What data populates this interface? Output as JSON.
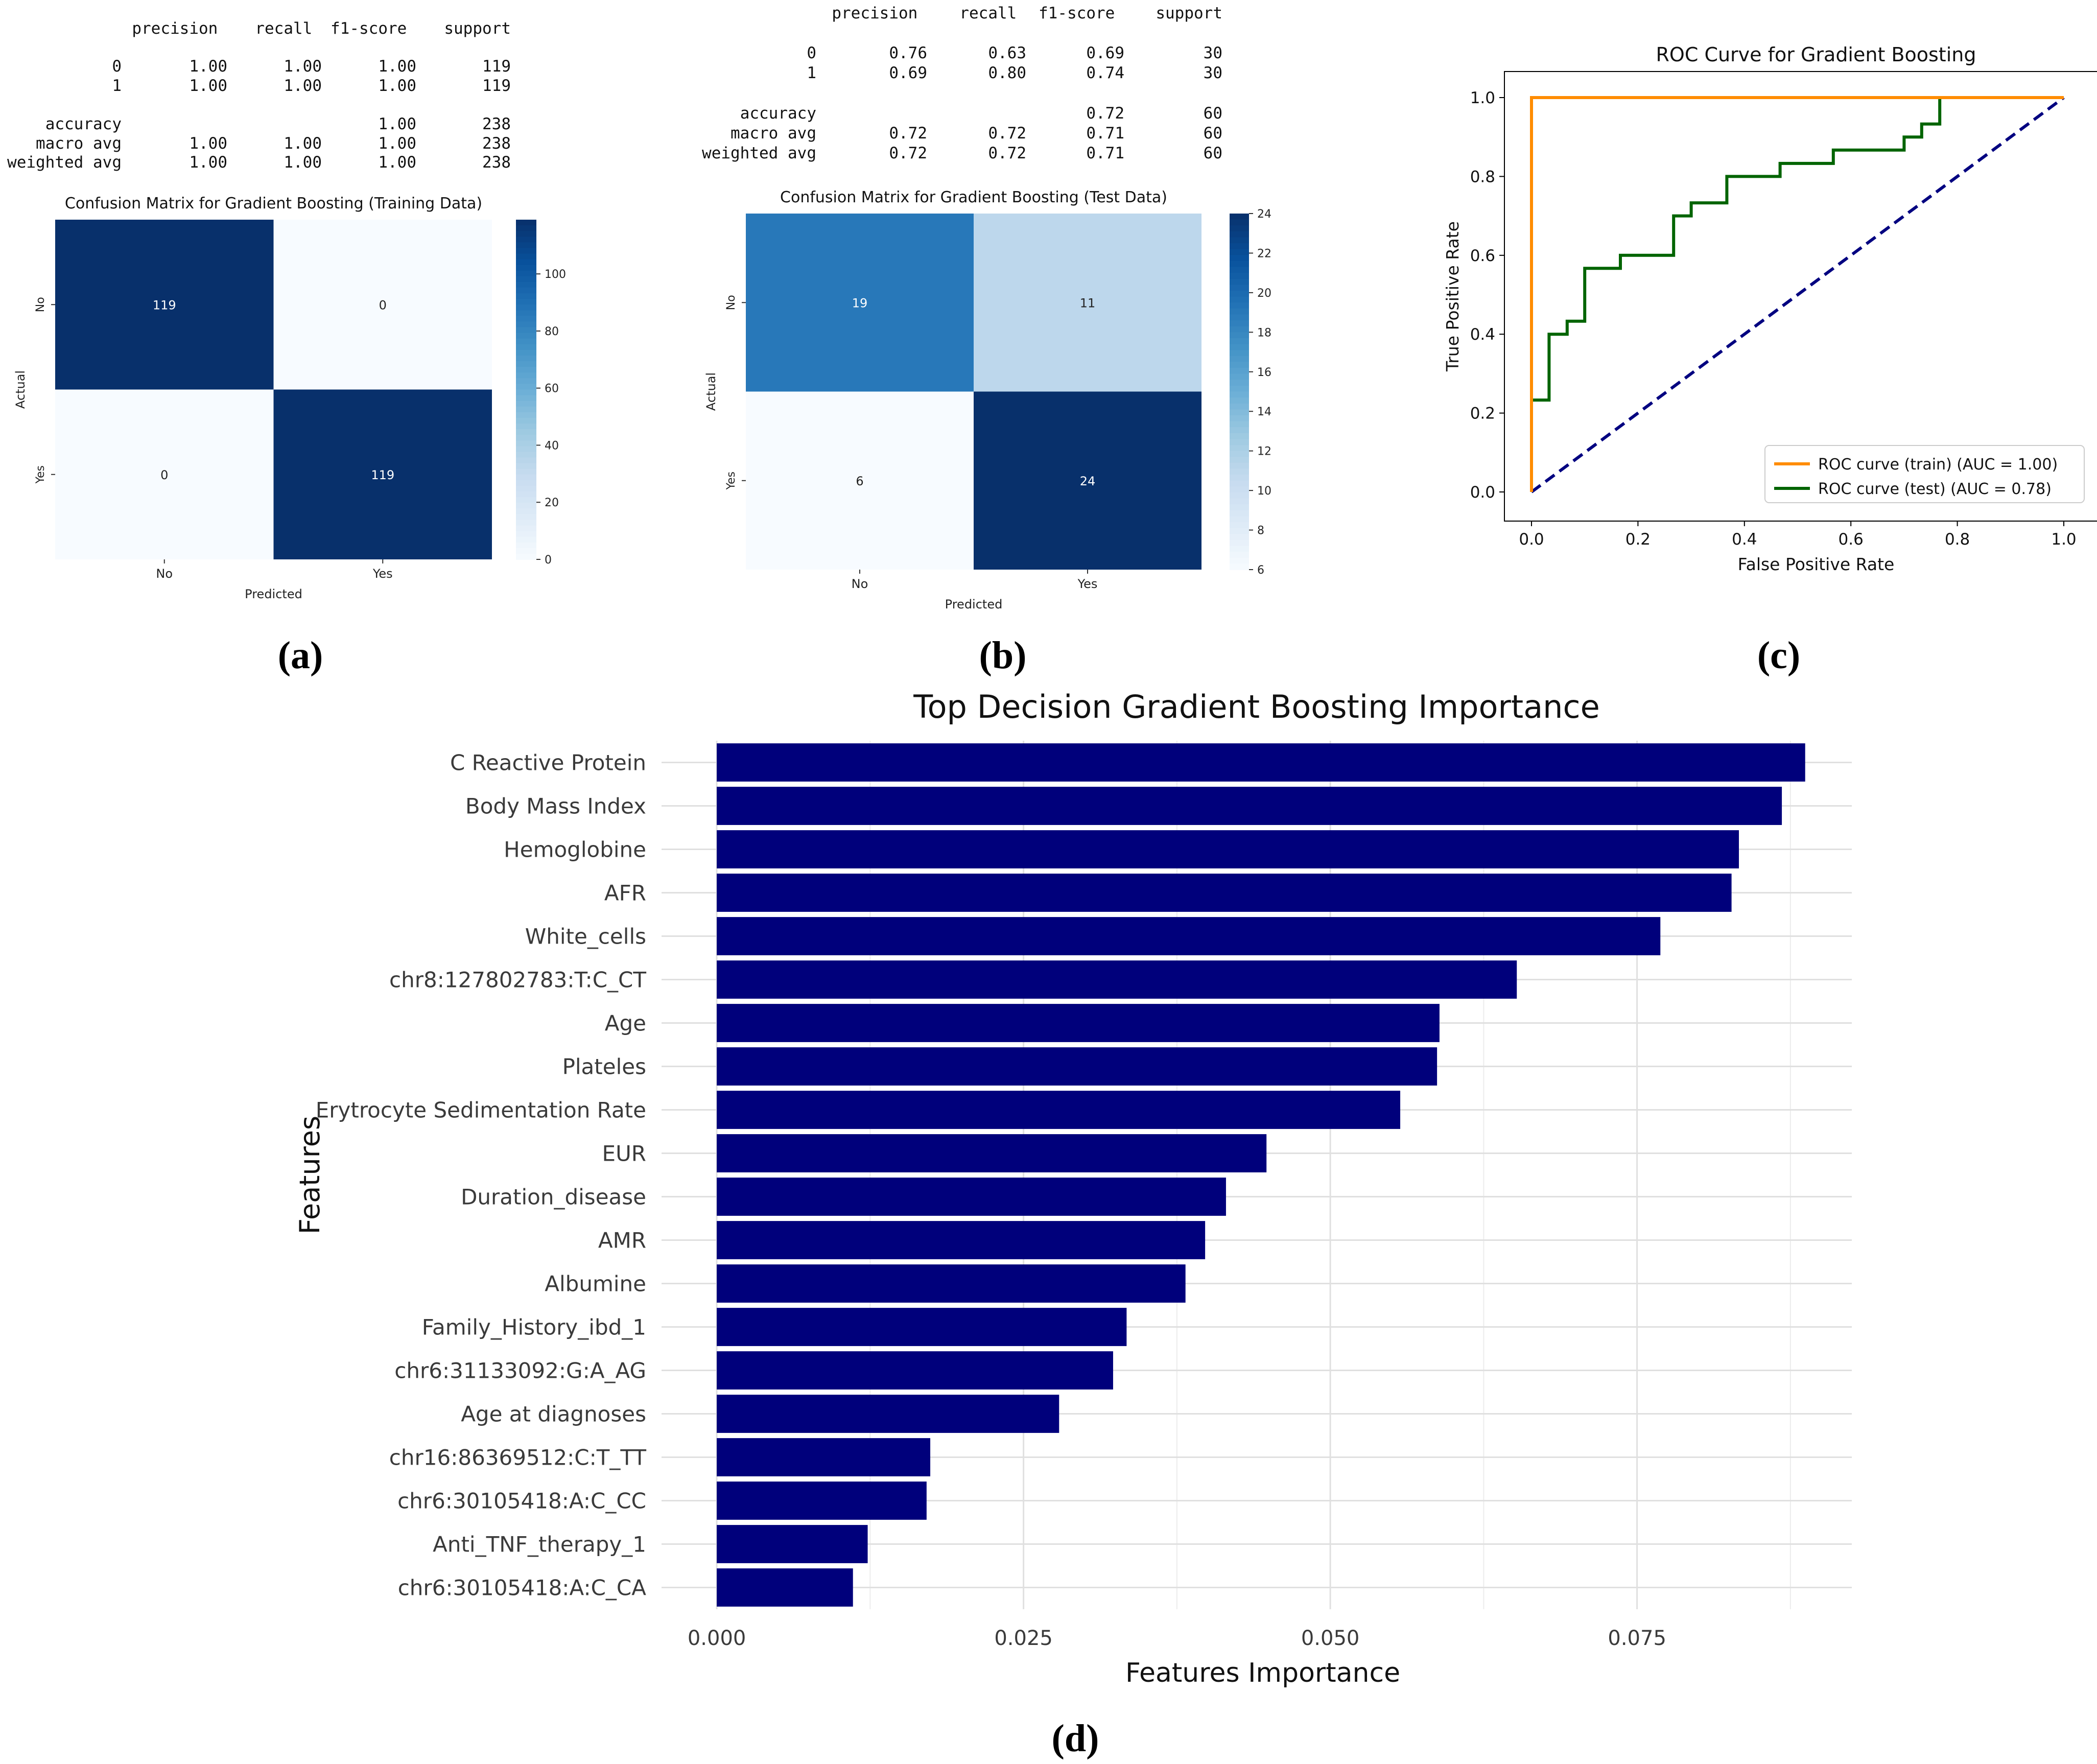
{
  "panel_labels": [
    "(a)",
    "(b)",
    "(c)",
    "(d)"
  ],
  "reports": [
    {
      "header": [
        "precision",
        "recall",
        "f1-score",
        "support"
      ],
      "rows": [
        {
          "label": "0",
          "values": [
            "1.00",
            "1.00",
            "1.00",
            "119"
          ]
        },
        {
          "label": "1",
          "values": [
            "1.00",
            "1.00",
            "1.00",
            "119"
          ]
        },
        {
          "label": "accuracy",
          "values": [
            "",
            "",
            "1.00",
            "238"
          ]
        },
        {
          "label": "macro avg",
          "values": [
            "1.00",
            "1.00",
            "1.00",
            "238"
          ]
        },
        {
          "label": "weighted avg",
          "values": [
            "1.00",
            "1.00",
            "1.00",
            "238"
          ]
        }
      ]
    },
    {
      "header": [
        "precision",
        "recall",
        "f1-score",
        "support"
      ],
      "rows": [
        {
          "label": "0",
          "values": [
            "0.76",
            "0.63",
            "0.69",
            "30"
          ]
        },
        {
          "label": "1",
          "values": [
            "0.69",
            "0.80",
            "0.74",
            "30"
          ]
        },
        {
          "label": "accuracy",
          "values": [
            "",
            "",
            "0.72",
            "60"
          ]
        },
        {
          "label": "macro avg",
          "values": [
            "0.72",
            "0.72",
            "0.71",
            "60"
          ]
        },
        {
          "label": "weighted avg",
          "values": [
            "0.72",
            "0.72",
            "0.71",
            "60"
          ]
        }
      ]
    }
  ],
  "chart_data": [
    {
      "type": "heatmap",
      "title": "Confusion Matrix for Gradient Boosting (Training Data)",
      "xlabel": "Predicted",
      "ylabel": "Actual",
      "x_ticks": [
        "No",
        "Yes"
      ],
      "y_ticks": [
        "No",
        "Yes"
      ],
      "values": [
        [
          119,
          0
        ],
        [
          0,
          119
        ]
      ],
      "colorbar": {
        "min": 0,
        "max": 119,
        "ticks": [
          0,
          20,
          40,
          60,
          80,
          100
        ]
      },
      "colormap": [
        "#f7fbff",
        "#deebf7",
        "#c6dbef",
        "#9ecae1",
        "#6baed6",
        "#4292c6",
        "#2171b5",
        "#08519c",
        "#08306b"
      ]
    },
    {
      "type": "heatmap",
      "title": "Confusion Matrix for Gradient Boosting (Test Data)",
      "xlabel": "Predicted",
      "ylabel": "Actual",
      "x_ticks": [
        "No",
        "Yes"
      ],
      "y_ticks": [
        "No",
        "Yes"
      ],
      "values": [
        [
          19,
          11
        ],
        [
          6,
          24
        ]
      ],
      "colorbar": {
        "min": 6,
        "max": 24,
        "ticks": [
          6,
          8,
          10,
          12,
          14,
          16,
          18,
          20,
          22,
          24
        ]
      },
      "colormap": [
        "#f7fbff",
        "#deebf7",
        "#c6dbef",
        "#9ecae1",
        "#6baed6",
        "#4292c6",
        "#2171b5",
        "#08519c",
        "#08306b"
      ]
    },
    {
      "type": "line",
      "title": "ROC Curve for Gradient Boosting",
      "xlabel": "False Positive Rate",
      "ylabel": "True Positive Rate",
      "xlim": [
        0,
        1
      ],
      "ylim": [
        0,
        1
      ],
      "x_ticks": [
        0.0,
        0.2,
        0.4,
        0.6,
        0.8,
        1.0
      ],
      "y_ticks": [
        0.0,
        0.2,
        0.4,
        0.6,
        0.8,
        1.0
      ],
      "tick_format": 1,
      "legend_position": "lower-right",
      "series": [
        {
          "name": "ROC curve (train) (AUC = 1.00)",
          "color": "#ff8c00",
          "dash": "solid",
          "x": [
            0,
            0,
            0,
            1
          ],
          "y": [
            0,
            0.23,
            1,
            1
          ]
        },
        {
          "name": "ROC curve (test) (AUC = 0.78)",
          "color": "#006400",
          "dash": "solid",
          "x": [
            0,
            0,
            0.033,
            0.033,
            0.067,
            0.067,
            0.1,
            0.1,
            0.167,
            0.167,
            0.267,
            0.267,
            0.3,
            0.3,
            0.367,
            0.367,
            0.467,
            0.467,
            0.567,
            0.567,
            0.7,
            0.7,
            0.733,
            0.733,
            0.767,
            0.767,
            1.0
          ],
          "y": [
            0,
            0.233,
            0.233,
            0.4,
            0.4,
            0.433,
            0.433,
            0.567,
            0.567,
            0.6,
            0.6,
            0.7,
            0.7,
            0.733,
            0.733,
            0.8,
            0.8,
            0.833,
            0.833,
            0.867,
            0.867,
            0.9,
            0.9,
            0.933,
            0.933,
            1.0,
            1.0
          ]
        },
        {
          "name": "",
          "color": "#000080",
          "dash": "dashed",
          "x": [
            0,
            1
          ],
          "y": [
            0,
            1
          ]
        }
      ]
    },
    {
      "type": "bar",
      "orientation": "horizontal",
      "title": "Top Decision Gradient Boosting Importance",
      "xlabel": "Features Importance",
      "ylabel": "Features",
      "xlim": [
        -0.0045,
        0.0925
      ],
      "x_ticks": [
        0.0,
        0.025,
        0.05,
        0.075
      ],
      "x_tick_labels": [
        "0.000",
        "0.025",
        "0.050",
        "0.075"
      ],
      "bar_color": "#00007b",
      "categories": [
        "C Reactive Protein",
        "Body Mass Index",
        "Hemoglobine",
        "AFR",
        "White_cells",
        "chr8:127802783:T:C_CT",
        "Age",
        "Plateles",
        "Erytrocyte Sedimentation Rate",
        "EUR",
        "Duration_disease",
        "AMR",
        "Albumine",
        "Family_History_ibd_1",
        "chr6:31133092:G:A_AG",
        "Age at diagnoses",
        "chr16:86369512:C:T_TT",
        "chr6:30105418:A:C_CC",
        "Anti_TNF_therapy_1",
        "chr6:30105418:A:C_CA"
      ],
      "values": [
        0.0887,
        0.0868,
        0.0833,
        0.0827,
        0.0769,
        0.0652,
        0.0589,
        0.0587,
        0.0557,
        0.0448,
        0.0415,
        0.0398,
        0.0382,
        0.0334,
        0.0323,
        0.0279,
        0.0174,
        0.0171,
        0.0123,
        0.0111
      ]
    }
  ]
}
